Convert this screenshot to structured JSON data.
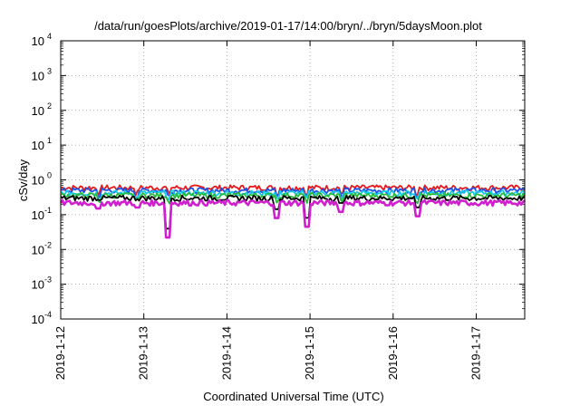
{
  "chart_data": {
    "type": "line",
    "title": "/data/run/goesPlots/archive/2019-01-17/14:00/bryn/../bryn/5daysMoon.plot",
    "xlabel": "Coordinated Universal Time (UTC)",
    "ylabel": "cSv/day",
    "yscale": "log",
    "xlim": [
      "2019-01-12T00:00",
      "2019-01-17T14:00"
    ],
    "ylim": [
      0.0001,
      10000
    ],
    "grid": true,
    "x_ticks": [
      "2019-1-12",
      "2019-1-13",
      "2019-1-14",
      "2019-1-15",
      "2019-1-16",
      "2019-1-17"
    ],
    "y_ticks": [
      {
        "base": "10",
        "exp": "-4"
      },
      {
        "base": "10",
        "exp": "-3"
      },
      {
        "base": "10",
        "exp": "-2"
      },
      {
        "base": "10",
        "exp": "-1"
      },
      {
        "base": "10",
        "exp": "0"
      },
      {
        "base": "10",
        "exp": "1"
      },
      {
        "base": "10",
        "exp": "2"
      },
      {
        "base": "10",
        "exp": "3"
      },
      {
        "base": "10",
        "exp": "4"
      }
    ],
    "series_baselines": [
      {
        "color": "#e8191b",
        "level": 0.6
      },
      {
        "color": "#1e52e6",
        "level": 0.5
      },
      {
        "color": "#19c8e6",
        "level": 0.42
      },
      {
        "color": "#27ba3d",
        "level": 0.36
      },
      {
        "color": "#000000",
        "level": 0.3
      },
      {
        "color": "#cf1fcf",
        "level": 0.22
      }
    ],
    "dips": [
      {
        "date": "2019-01-13T07:00",
        "value": 0.022
      },
      {
        "date": "2019-01-14T14:30",
        "value": 0.08
      },
      {
        "date": "2019-01-14T23:00",
        "value": 0.045
      },
      {
        "date": "2019-01-15T09:00",
        "value": 0.12
      },
      {
        "date": "2019-01-16T07:00",
        "value": 0.09
      },
      {
        "date": "2019-01-12T11:00",
        "value": 0.15
      },
      {
        "date": "2019-01-12T22:00",
        "value": 0.16
      }
    ]
  }
}
